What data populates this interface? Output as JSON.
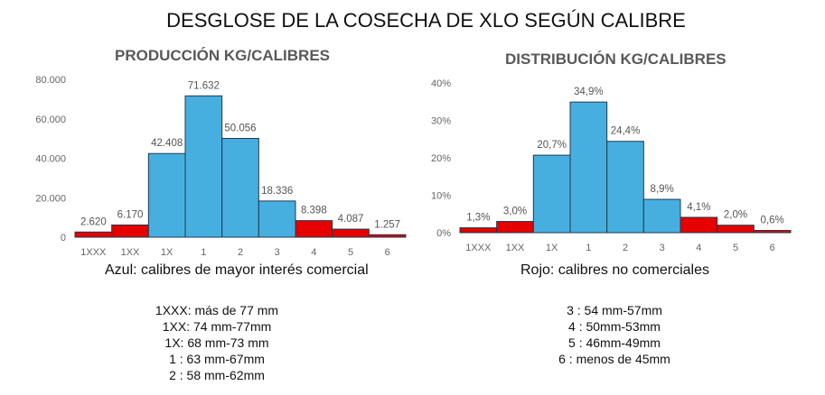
{
  "title": "DESGLOSE DE LA COSECHA DE XLO SEGÚN CALIBRE",
  "colors": {
    "commercial": "#47AFE0",
    "non_commercial": "#E60000",
    "border": "#1f3a4d"
  },
  "chart_data": [
    {
      "type": "bar",
      "title": "PRODUCCIÓN KG/CALIBRES",
      "categories": [
        "1XXX",
        "1XX",
        "1X",
        "1",
        "2",
        "3",
        "4",
        "5",
        "6"
      ],
      "values": [
        2620,
        6170,
        42408,
        71632,
        50056,
        18336,
        8398,
        4087,
        1257
      ],
      "value_labels": [
        "2.620",
        "6.170",
        "42.408",
        "71.632",
        "50.056",
        "18.336",
        "8.398",
        "4.087",
        "1.257"
      ],
      "commercial": [
        false,
        false,
        true,
        true,
        true,
        true,
        false,
        false,
        false
      ],
      "yticks": [
        "0",
        "20.000",
        "40.000",
        "60.000",
        "80.000"
      ],
      "ylim": [
        0,
        80000
      ],
      "xlabel": "",
      "ylabel": "",
      "grid": false
    },
    {
      "type": "bar",
      "title": "DISTRIBUCIÓN KG/CALIBRES",
      "categories": [
        "1XXX",
        "1XX",
        "1X",
        "1",
        "2",
        "3",
        "4",
        "5",
        "6"
      ],
      "values": [
        1.3,
        3.0,
        20.7,
        34.9,
        24.4,
        8.9,
        4.1,
        2.0,
        0.6
      ],
      "value_labels": [
        "1,3%",
        "3,0%",
        "20,7%",
        "34,9%",
        "24,4%",
        "8,9%",
        "4,1%",
        "2,0%",
        "0,6%"
      ],
      "commercial": [
        false,
        false,
        true,
        true,
        true,
        true,
        false,
        false,
        false
      ],
      "yticks": [
        "0%",
        "10%",
        "20%",
        "30%",
        "40%"
      ],
      "ylim": [
        0,
        40
      ],
      "xlabel": "",
      "ylabel": "",
      "grid": false
    }
  ],
  "captions": {
    "blue": "Azul: calibres de mayor interés comercial",
    "red": "Rojo: calibres no comerciales"
  },
  "legend_left": [
    "1XXX: más de 77 mm",
    "1XX: 74 mm-77mm",
    "1X: 68 mm-73 mm",
    "1 : 63 mm-67mm",
    "2 : 58 mm-62mm"
  ],
  "legend_right": [
    "3 : 54 mm-57mm",
    "4 : 50mm-53mm",
    "5 : 46mm-49mm",
    "6 : menos de 45mm"
  ]
}
